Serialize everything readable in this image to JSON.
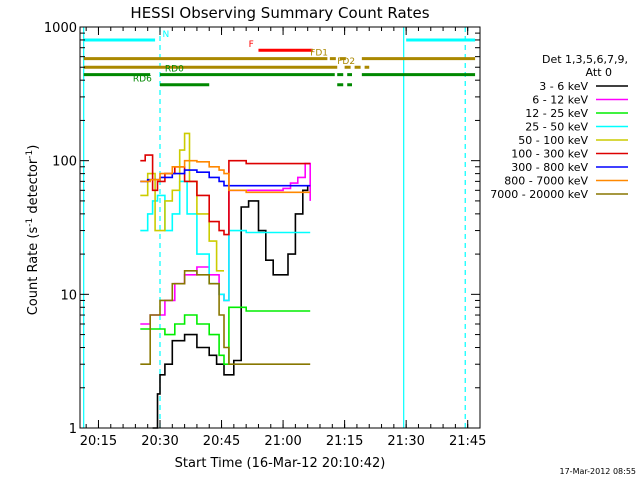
{
  "chart_data": {
    "type": "line",
    "title": "HESSI Observing Summary Count Rates",
    "xlabel": "Start Time (16-Mar-12 20:10:42)",
    "ylabel_main": "Count Rate (s",
    "ylabel_sup1": "-1",
    "ylabel_mid": " detector",
    "ylabel_sup2": "-1",
    "ylabel_end": ")",
    "timestamp": "17-Mar-2012 08:55",
    "xlim": [
      20.175,
      21.8
    ],
    "ylim": [
      1,
      1000
    ],
    "yscale": "log",
    "xticks": [
      {
        "v": 20.25,
        "label": "20:15"
      },
      {
        "v": 20.5,
        "label": "20:30"
      },
      {
        "v": 20.75,
        "label": "20:45"
      },
      {
        "v": 21.0,
        "label": "21:00"
      },
      {
        "v": 21.25,
        "label": "21:15"
      },
      {
        "v": 21.5,
        "label": "21:30"
      },
      {
        "v": 21.75,
        "label": "21:45"
      }
    ],
    "yticks": [
      {
        "v": 1,
        "label": "1"
      },
      {
        "v": 10,
        "label": "10"
      },
      {
        "v": 100,
        "label": "100"
      },
      {
        "v": 1000,
        "label": "1000"
      }
    ],
    "legend": {
      "position": "right",
      "header1": "Det 1,3,5,6,7,9,",
      "header2": "Att 0",
      "entries": [
        {
          "label": "3 - 6 keV",
          "color": "#000000"
        },
        {
          "label": "6 - 12 keV",
          "color": "#ff00ff"
        },
        {
          "label": "12 - 25 keV",
          "color": "#00ee00"
        },
        {
          "label": "25 - 50 keV",
          "color": "#00ffff"
        },
        {
          "label": "50 - 100 keV",
          "color": "#cccc00"
        },
        {
          "label": "100 - 300 keV",
          "color": "#dd0000"
        },
        {
          "label": "300 - 800 keV",
          "color": "#0000ff"
        },
        {
          "label": "800 - 7000 keV",
          "color": "#ff8800"
        },
        {
          "label": "7000 - 20000 keV",
          "color": "#887700"
        }
      ]
    },
    "vlines": [
      {
        "x": 20.19,
        "color": "#00ffff",
        "style": "solid"
      },
      {
        "x": 20.5,
        "color": "#00ffff",
        "style": "dashed"
      },
      {
        "x": 21.49,
        "color": "#00ffff",
        "style": "solid"
      },
      {
        "x": 21.74,
        "color": "#00ffff",
        "style": "dashed"
      }
    ],
    "flags": [
      {
        "label": "N",
        "color": "#00ffff",
        "y": 800,
        "segments": [
          {
            "x0": 20.19,
            "x1": 20.48,
            "dash": false
          },
          {
            "x0": 21.5,
            "x1": 21.78,
            "dash": false
          }
        ],
        "label_x": 20.51
      },
      {
        "label": "F",
        "color": "#ff0000",
        "y": 670,
        "segments": [
          {
            "x0": 20.9,
            "x1": 21.12,
            "dash": false
          }
        ],
        "label_x": 20.86
      },
      {
        "label": "FD1",
        "color": "#aa8800",
        "y": 580,
        "segments": [
          {
            "x0": 20.19,
            "x1": 21.18,
            "dash": false
          },
          {
            "x0": 21.19,
            "x1": 21.27,
            "dash": true
          },
          {
            "x0": 21.32,
            "x1": 21.78,
            "dash": false
          }
        ],
        "label_x": 21.11
      },
      {
        "label": "FD2",
        "color": "#aa8800",
        "y": 500,
        "segments": [
          {
            "x0": 20.19,
            "x1": 21.22,
            "dash": false
          },
          {
            "x0": 21.25,
            "x1": 21.35,
            "dash": true
          }
        ],
        "label_x": 21.22
      },
      {
        "label": "RD0",
        "color": "#008800",
        "y": 440,
        "segments": [
          {
            "x0": 20.19,
            "x1": 20.46,
            "dash": false
          },
          {
            "x0": 20.5,
            "x1": 21.21,
            "dash": false
          },
          {
            "x0": 21.22,
            "x1": 21.28,
            "dash": true
          },
          {
            "x0": 21.32,
            "x1": 21.78,
            "dash": false
          }
        ],
        "label_x": 20.52
      },
      {
        "label": "RD6",
        "color": "#008800",
        "y": 370,
        "segments": [
          {
            "x0": 20.5,
            "x1": 20.7,
            "dash": false
          },
          {
            "x0": 21.22,
            "x1": 21.28,
            "dash": true
          }
        ],
        "label_x": 20.39
      }
    ],
    "series": [
      {
        "name": "3 - 6 keV",
        "color": "#000000",
        "x": [
          20.47,
          20.49,
          20.5,
          20.52,
          20.55,
          20.6,
          20.65,
          20.7,
          20.73,
          20.76,
          20.8,
          20.83,
          20.86,
          20.9,
          20.93,
          20.96,
          21.0,
          21.02,
          21.05,
          21.08,
          21.1
        ],
        "y": [
          1.0,
          1.8,
          2.5,
          3.0,
          4.5,
          5.0,
          4.0,
          3.5,
          3.0,
          2.5,
          3.2,
          45,
          50,
          30,
          18,
          14,
          14,
          20,
          40,
          60,
          65
        ]
      },
      {
        "name": "6 - 12 keV",
        "color": "#ff00ff",
        "x": [
          20.42,
          20.46,
          20.48,
          20.52,
          20.56,
          20.6,
          20.65,
          20.7,
          20.74,
          20.76,
          20.78,
          20.82,
          20.85,
          20.88,
          20.92,
          20.95,
          20.98,
          21.0,
          21.03,
          21.06,
          21.09,
          21.11
        ],
        "y": [
          6.0,
          7.0,
          7.0,
          9.0,
          12,
          14,
          16,
          14,
          10,
          9.0,
          60,
          60,
          60,
          60,
          60,
          60,
          60,
          62,
          68,
          75,
          95,
          50
        ]
      },
      {
        "name": "12 - 25 keV",
        "color": "#00ee00",
        "x": [
          20.42,
          20.46,
          20.48,
          20.52,
          20.56,
          20.6,
          20.65,
          20.7,
          20.74,
          20.76,
          20.78,
          20.85,
          20.95,
          21.05,
          21.11
        ],
        "y": [
          5.5,
          5.5,
          5.5,
          5.0,
          6.0,
          7.0,
          6.0,
          5.0,
          3.5,
          3.0,
          8.0,
          7.5,
          7.5,
          7.5,
          7.5
        ]
      },
      {
        "name": "25 - 50 keV",
        "color": "#00ffff",
        "x": [
          20.42,
          20.45,
          20.47,
          20.49,
          20.52,
          20.55,
          20.58,
          20.61,
          20.65,
          20.7,
          20.74,
          20.76,
          20.78,
          20.85,
          20.95,
          21.05,
          21.11
        ],
        "y": [
          30,
          40,
          50,
          55,
          30,
          40,
          70,
          40,
          20,
          12,
          10,
          9.0,
          30,
          29,
          29,
          29,
          29
        ]
      },
      {
        "name": "50 - 100 keV",
        "color": "#cccc00",
        "x": [
          20.42,
          20.45,
          20.48,
          20.52,
          20.55,
          20.58,
          20.6,
          20.62,
          20.65,
          20.7,
          20.73,
          20.76
        ],
        "y": [
          55,
          80,
          30,
          50,
          60,
          120,
          160,
          70,
          40,
          25,
          15,
          15
        ]
      },
      {
        "name": "100 - 300 keV",
        "color": "#dd0000",
        "x": [
          20.42,
          20.44,
          20.47,
          20.49,
          20.52,
          20.56,
          20.6,
          20.65,
          20.7,
          20.74,
          20.76,
          20.78,
          20.85,
          20.95,
          21.05,
          21.11
        ],
        "y": [
          100,
          110,
          60,
          70,
          80,
          90,
          70,
          55,
          35,
          30,
          28,
          100,
          95,
          95,
          95,
          95
        ]
      },
      {
        "name": "300 - 800 keV",
        "color": "#0000ff",
        "x": [
          20.42,
          20.45,
          20.5,
          20.55,
          20.6,
          20.65,
          20.7,
          20.74,
          20.76,
          20.78,
          20.85,
          20.95,
          21.05,
          21.11
        ],
        "y": [
          70,
          72,
          75,
          80,
          85,
          82,
          75,
          70,
          65,
          65,
          65,
          65,
          65,
          65
        ]
      },
      {
        "name": "800 - 7000 keV",
        "color": "#ff8800",
        "x": [
          20.42,
          20.46,
          20.5,
          20.55,
          20.6,
          20.65,
          20.7,
          20.74,
          20.76,
          20.78,
          20.85,
          20.95,
          21.05,
          21.11
        ],
        "y": [
          70,
          72,
          80,
          90,
          100,
          98,
          90,
          85,
          80,
          60,
          58,
          58,
          58,
          58
        ]
      },
      {
        "name": "7000 - 20000 keV",
        "color": "#887700",
        "x": [
          20.42,
          20.46,
          20.5,
          20.55,
          20.6,
          20.65,
          20.7,
          20.74,
          20.76,
          20.78,
          20.85,
          20.95,
          21.05,
          21.11
        ],
        "y": [
          3.0,
          7.0,
          9.0,
          12,
          15,
          14,
          12,
          7.0,
          4.0,
          3.0,
          3.0,
          3.0,
          3.0,
          3.0
        ]
      }
    ]
  }
}
